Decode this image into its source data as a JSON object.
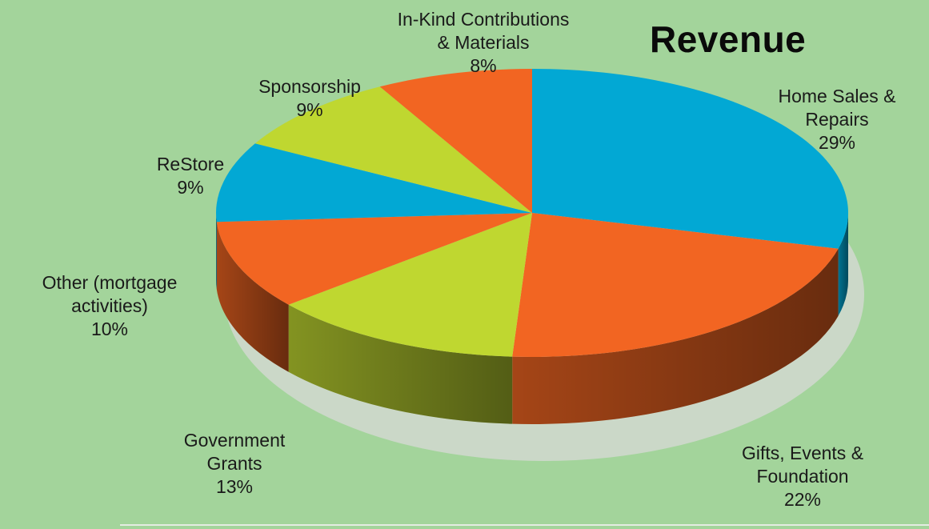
{
  "chart_data": {
    "type": "pie",
    "title": "Revenue",
    "slices": [
      {
        "label_lines": [
          "Home Sales &",
          "Repairs"
        ],
        "percent_label": "29%",
        "value": 29,
        "color": "#02a8d4"
      },
      {
        "label_lines": [
          "Gifts, Events &",
          "Foundation"
        ],
        "percent_label": "22%",
        "value": 22,
        "color": "#f26522"
      },
      {
        "label_lines": [
          "Government",
          "Grants"
        ],
        "percent_label": "13%",
        "value": 13,
        "color": "#bfd730"
      },
      {
        "label_lines": [
          "Other (mortgage",
          "activities)"
        ],
        "percent_label": "10%",
        "value": 10,
        "color": "#f26522"
      },
      {
        "label_lines": [
          "ReStore"
        ],
        "percent_label": "9%",
        "value": 9,
        "color": "#02a8d4"
      },
      {
        "label_lines": [
          "Sponsorship"
        ],
        "percent_label": "9%",
        "value": 9,
        "color": "#bfd730"
      },
      {
        "label_lines": [
          "In-Kind Contributions",
          "& Materials"
        ],
        "percent_label": "8%",
        "value": 8,
        "color": "#f26522"
      }
    ]
  }
}
